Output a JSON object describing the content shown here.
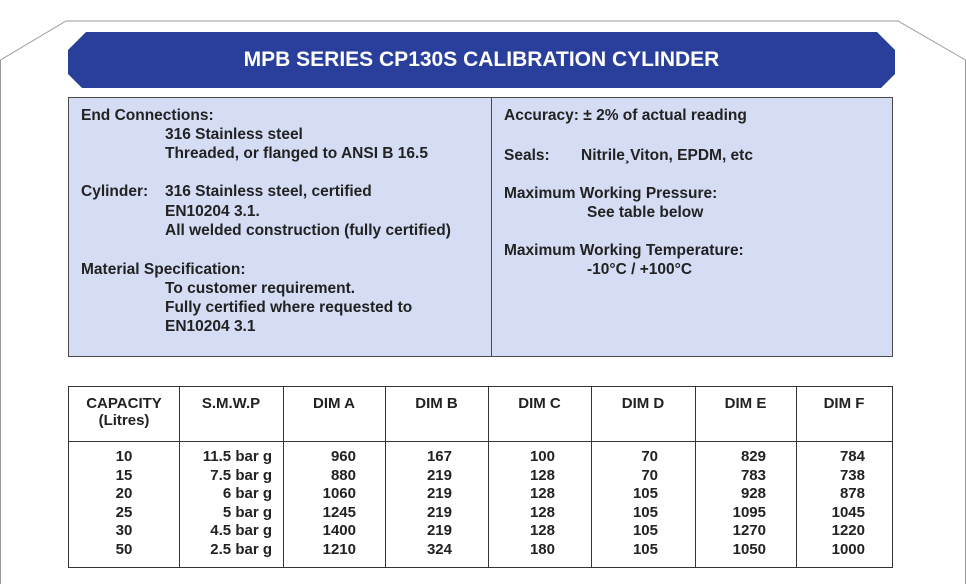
{
  "title": "MPB SERIES CP130S CALIBRATION CYLINDER",
  "colors": {
    "banner": "#2a3f9c",
    "panel": "#d5ddf5",
    "border": "#4a4a4a"
  },
  "spec_left": {
    "end_connections_label": "End Connections:",
    "end_connections_1": "316 Stainless steel",
    "end_connections_2": "Threaded, or flanged to ANSI B 16.5",
    "cylinder_label": "Cylinder:",
    "cylinder_1": "316 Stainless steel, certified",
    "cylinder_2": "EN10204 3.1.",
    "cylinder_3": "All welded construction (fully certified)",
    "material_label": "Material Specification:",
    "material_1": "To customer requirement.",
    "material_2": "Fully certified where requested to",
    "material_3": "EN10204 3.1"
  },
  "spec_right": {
    "accuracy": "Accuracy: ± 2% of actual reading",
    "seals_label": "Seals:",
    "seals_value": "Nitrile¸Viton, EPDM, etc",
    "pressure_label": "Maximum Working Pressure:",
    "pressure_value": "See table below",
    "temperature_label": "Maximum Working Temperature:",
    "temperature_value": "-10°C / +100°C"
  },
  "table": {
    "headers": [
      "CAPACITY\n(Litres)",
      "S.M.W.P",
      "DIM A",
      "DIM B",
      "DIM C",
      "DIM D",
      "DIM E",
      "DIM F"
    ],
    "columns": [
      [
        "10",
        "15",
        "20",
        "25",
        "30",
        "50"
      ],
      [
        "11.5 bar g",
        "7.5 bar g",
        "6 bar g",
        "5 bar g",
        "4.5 bar g",
        "2.5 bar g"
      ],
      [
        "960",
        "880",
        "1060",
        "1245",
        "1400",
        "1210"
      ],
      [
        "167",
        "219",
        "219",
        "219",
        "219",
        "324"
      ],
      [
        "100",
        "128",
        "128",
        "128",
        "128",
        "180"
      ],
      [
        "70",
        "70",
        "105",
        "105",
        "105",
        "105"
      ],
      [
        "829",
        "783",
        "928",
        "1095",
        "1270",
        "1050"
      ],
      [
        "784",
        "738",
        "878",
        "1045",
        "1220",
        "1000"
      ]
    ]
  }
}
